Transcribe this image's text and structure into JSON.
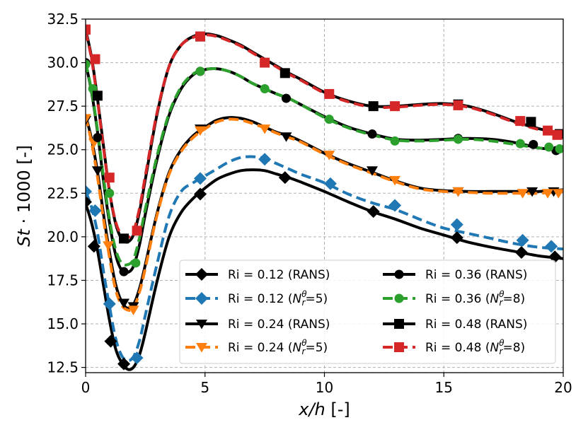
{
  "chart_data": {
    "type": "line",
    "title": "",
    "xlabel_parts": {
      "var": "x/h",
      "unit": " [-]"
    },
    "ylabel_parts": {
      "var": "St",
      "rest": " · 1000 [-]"
    },
    "xlim": [
      0,
      20
    ],
    "ylim": [
      12.2,
      32.5
    ],
    "xticks": [
      0,
      5,
      10,
      15,
      20
    ],
    "xtick_labels": [
      "0",
      "5",
      "10",
      "15",
      "20"
    ],
    "yticks": [
      12.5,
      15.0,
      17.5,
      20.0,
      22.5,
      25.0,
      27.5,
      30.0,
      32.5
    ],
    "ytick_labels": [
      "12.5",
      "15.0",
      "17.5",
      "20.0",
      "22.5",
      "25.0",
      "27.5",
      "30.0",
      "32.5"
    ],
    "grid": true,
    "legend_position": "lower-right",
    "x_curve": [
      0,
      0.25,
      0.5,
      0.75,
      1.0,
      1.25,
      1.5,
      1.75,
      2.0,
      2.25,
      2.5,
      3,
      3.5,
      4,
      4.5,
      5,
      5.5,
      6,
      6.5,
      7,
      7.5,
      8,
      8.5,
      9,
      10,
      11,
      12,
      13,
      14,
      15,
      16,
      17,
      18,
      19,
      20
    ],
    "series": [
      {
        "name": "Ri = 0.12 (RANS)",
        "ri": "0.12",
        "suffix": "(RANS)",
        "color": "#000000",
        "dashed": false,
        "marker": "diamond",
        "y_curve": [
          21.9,
          20.8,
          19.2,
          17.2,
          15.2,
          13.6,
          12.8,
          12.4,
          12.5,
          13.2,
          14.5,
          17.5,
          20.0,
          21.4,
          22.2,
          22.8,
          23.3,
          23.6,
          23.8,
          23.85,
          23.8,
          23.6,
          23.4,
          23.15,
          22.6,
          22.0,
          21.45,
          21.0,
          20.5,
          20.1,
          19.7,
          19.4,
          19.15,
          18.9,
          18.75
        ],
        "mx": [
          0,
          0.35,
          1.05,
          1.6,
          4.8,
          8.35,
          12.05,
          15.55,
          18.25,
          19.65
        ],
        "my": [
          22.0,
          19.45,
          14.0,
          12.7,
          22.45,
          23.4,
          21.45,
          19.95,
          19.1,
          18.85
        ]
      },
      {
        "name": "Ri = 0.12 (N_r^θ=5)",
        "ri": "0.12",
        "suffix": "",
        "color": "#1f77b4",
        "dashed": true,
        "marker": "diamond",
        "y_curve": [
          22.6,
          21.7,
          20.2,
          18.0,
          16.0,
          14.2,
          13.2,
          12.9,
          13.1,
          14.0,
          15.5,
          18.5,
          21.2,
          22.6,
          23.1,
          23.5,
          23.9,
          24.3,
          24.55,
          24.6,
          24.5,
          24.2,
          23.9,
          23.6,
          23.1,
          22.45,
          21.95,
          21.55,
          21.0,
          20.5,
          20.2,
          19.9,
          19.6,
          19.4,
          19.3
        ],
        "mx": [
          0,
          0.4,
          1.0,
          2.15,
          4.8,
          7.5,
          10.25,
          12.95,
          15.55,
          18.3,
          19.5
        ],
        "my": [
          22.6,
          21.5,
          16.15,
          13.05,
          23.35,
          24.45,
          23.05,
          21.8,
          20.7,
          19.8,
          19.45
        ]
      },
      {
        "name": "Ri = 0.24 (RANS)",
        "ri": "0.24",
        "suffix": "(RANS)",
        "color": "#000000",
        "dashed": false,
        "marker": "tri_down",
        "y_curve": [
          27.0,
          25.6,
          23.7,
          21.3,
          19.1,
          17.3,
          16.3,
          15.9,
          16.1,
          17.0,
          18.4,
          21.4,
          23.7,
          25.0,
          25.8,
          26.3,
          26.7,
          26.85,
          26.8,
          26.6,
          26.3,
          26.0,
          25.8,
          25.5,
          24.8,
          24.2,
          23.7,
          23.2,
          22.8,
          22.65,
          22.6,
          22.6,
          22.6,
          22.6,
          22.7
        ],
        "mx": [
          0,
          0.5,
          1.6,
          2.0,
          4.8,
          8.4,
          12.0,
          15.6,
          18.7,
          19.6
        ],
        "my": [
          26.7,
          23.8,
          16.2,
          16.0,
          26.2,
          25.75,
          23.8,
          22.6,
          22.6,
          22.6
        ]
      },
      {
        "name": "Ri = 0.24 (N_r^θ=5)",
        "ri": "0.24",
        "suffix": "",
        "color": "#ff7f0e",
        "dashed": true,
        "marker": "tri_down",
        "y_curve": [
          26.9,
          25.4,
          23.4,
          21.0,
          18.8,
          17.0,
          16.1,
          15.8,
          15.9,
          16.8,
          18.2,
          21.3,
          23.6,
          24.9,
          25.7,
          26.2,
          26.6,
          26.75,
          26.7,
          26.5,
          26.25,
          25.95,
          25.7,
          25.45,
          24.75,
          24.15,
          23.65,
          23.15,
          22.75,
          22.6,
          22.55,
          22.5,
          22.5,
          22.5,
          22.6
        ],
        "mx": [
          0,
          0.35,
          0.95,
          2.0,
          4.8,
          7.5,
          10.2,
          12.95,
          15.6,
          18.3,
          19.35,
          19.8
        ],
        "my": [
          26.8,
          25.4,
          19.5,
          15.8,
          26.1,
          26.2,
          24.7,
          23.25,
          22.6,
          22.5,
          22.5,
          22.5
        ]
      },
      {
        "name": "Ri = 0.36 (RANS)",
        "ri": "0.36",
        "suffix": "(RANS)",
        "color": "#000000",
        "dashed": false,
        "marker": "circle",
        "y_curve": [
          30.0,
          28.3,
          26.0,
          23.2,
          20.8,
          19.0,
          18.1,
          17.95,
          18.3,
          19.5,
          21.3,
          24.5,
          27.0,
          28.5,
          29.3,
          29.6,
          29.65,
          29.5,
          29.2,
          28.8,
          28.5,
          28.2,
          27.95,
          27.6,
          26.9,
          26.3,
          25.9,
          25.6,
          25.55,
          25.6,
          25.65,
          25.6,
          25.4,
          25.1,
          25.0
        ],
        "mx": [
          0,
          0.5,
          1.6,
          4.8,
          8.4,
          12.0,
          15.6,
          18.75,
          19.7
        ],
        "my": [
          30.0,
          25.7,
          18.0,
          29.5,
          27.95,
          25.9,
          25.65,
          25.3,
          24.95
        ]
      },
      {
        "name": "Ri = 0.36 (N_r^θ=8)",
        "ri": "0.36",
        "suffix": "",
        "color": "#2ca02c",
        "dashed": true,
        "marker": "circle",
        "y_curve": [
          30.0,
          28.4,
          26.1,
          23.4,
          21.0,
          19.3,
          18.5,
          18.4,
          18.7,
          19.9,
          21.6,
          24.7,
          27.1,
          28.6,
          29.35,
          29.6,
          29.65,
          29.5,
          29.2,
          28.8,
          28.5,
          28.2,
          27.95,
          27.6,
          26.85,
          26.25,
          25.85,
          25.55,
          25.5,
          25.55,
          25.6,
          25.5,
          25.3,
          25.1,
          25.0
        ],
        "mx": [
          0,
          0.3,
          1.0,
          2.1,
          4.8,
          7.5,
          10.2,
          12.95,
          15.6,
          18.2,
          19.4,
          19.85
        ],
        "my": [
          29.9,
          28.5,
          22.5,
          18.5,
          29.5,
          28.5,
          26.75,
          25.5,
          25.6,
          25.35,
          25.15,
          25.05
        ]
      },
      {
        "name": "Ri = 0.48 (RANS)",
        "ri": "0.48",
        "suffix": "(RANS)",
        "color": "#000000",
        "dashed": false,
        "marker": "square",
        "y_curve": [
          31.9,
          30.3,
          27.9,
          25.2,
          22.6,
          20.8,
          19.9,
          19.7,
          20.1,
          21.4,
          23.3,
          27.1,
          29.8,
          31.0,
          31.5,
          31.65,
          31.55,
          31.3,
          31.0,
          30.6,
          30.2,
          29.8,
          29.4,
          29.05,
          28.3,
          27.8,
          27.5,
          27.5,
          27.6,
          27.65,
          27.5,
          27.1,
          26.6,
          26.2,
          25.9
        ],
        "mx": [
          0,
          0.5,
          1.6,
          4.8,
          8.35,
          12.05,
          15.6,
          18.65,
          19.85
        ],
        "my": [
          31.9,
          28.1,
          19.9,
          31.5,
          29.4,
          27.5,
          27.6,
          26.6,
          25.9
        ]
      },
      {
        "name": "Ri = 0.48 (N_r^θ=8)",
        "ri": "0.48",
        "suffix": "",
        "color": "#d62728",
        "dashed": true,
        "marker": "square",
        "y_curve": [
          31.8,
          30.2,
          27.8,
          25.1,
          22.6,
          20.9,
          20.1,
          19.95,
          20.3,
          21.6,
          23.5,
          27.2,
          29.8,
          31.0,
          31.45,
          31.6,
          31.5,
          31.25,
          30.95,
          30.55,
          30.15,
          29.75,
          29.35,
          29.0,
          28.25,
          27.75,
          27.45,
          27.45,
          27.55,
          27.6,
          27.45,
          27.05,
          26.55,
          26.15,
          25.85
        ],
        "mx": [
          0,
          0.4,
          1.0,
          2.15,
          4.8,
          7.5,
          10.2,
          12.95,
          15.6,
          18.2,
          19.35,
          19.75
        ],
        "my": [
          31.9,
          30.2,
          23.4,
          20.35,
          31.5,
          30.0,
          28.2,
          27.5,
          27.55,
          26.65,
          26.1,
          25.85
        ]
      }
    ],
    "legend_order": [
      0,
      4,
      1,
      5,
      2,
      6,
      3,
      7
    ]
  }
}
